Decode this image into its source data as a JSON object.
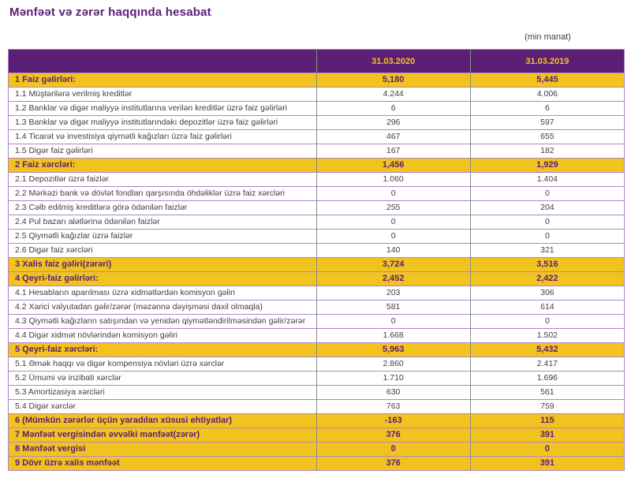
{
  "title": "Mənfəət və zərər haqqında hesabat",
  "unit_note": "(min manat)",
  "table": {
    "columns": [
      "31.03.2020",
      "31.03.2019"
    ],
    "rows": [
      {
        "label": "1 Faiz gəlirləri:",
        "values": [
          "5,180",
          "5,445"
        ],
        "style": "total"
      },
      {
        "label": "1.1 Müştərilərə verilmiş kreditlər",
        "values": [
          "4.244",
          "4.006"
        ],
        "style": "detail"
      },
      {
        "label": "1.2 Banklar və digər maliyyə institutlarına verilən kreditlər üzrə faiz gəlirləri",
        "values": [
          "6",
          "6"
        ],
        "style": "detail"
      },
      {
        "label": "1.3 Banklar və digər maliyyə institutlarındakı depozitlər üzrə faiz gəlirləri",
        "values": [
          "296",
          "597"
        ],
        "style": "detail"
      },
      {
        "label": "1.4 Ticarət və investisiya qiymətli kağızları üzrə faiz gəlirləri",
        "values": [
          "467",
          "655"
        ],
        "style": "detail"
      },
      {
        "label": "1.5 Digər faiz gəlirləri",
        "values": [
          "167",
          "182"
        ],
        "style": "detail"
      },
      {
        "label": "2 Faiz xərcləri:",
        "values": [
          "1,456",
          "1,929"
        ],
        "style": "total"
      },
      {
        "label": "2.1 Depozitlər üzrə faizlər",
        "values": [
          "1.060",
          "1.404"
        ],
        "style": "detail"
      },
      {
        "label": "2.2 Mərkəzi bank və dövlət fondları qarşısında öhdəliklər üzrə faiz xərcləri",
        "values": [
          "0",
          "0"
        ],
        "style": "detail"
      },
      {
        "label": "2.3 Cəlb edilmiş kreditlərə görə ödənilən faizlər",
        "values": [
          "255",
          "204"
        ],
        "style": "detail"
      },
      {
        "label": "2.4 Pul bazarı alətlərinə ödənilən faizlər",
        "values": [
          "0",
          "0"
        ],
        "style": "detail"
      },
      {
        "label": "2.5 Qiymətli kağızlar üzrə faizlər",
        "values": [
          "0",
          "0"
        ],
        "style": "detail"
      },
      {
        "label": "2.6 Digər faiz xərcləri",
        "values": [
          "140",
          "321"
        ],
        "style": "detail"
      },
      {
        "label": "3 Xalis faiz gəliri(zərəri)",
        "values": [
          "3,724",
          "3,516"
        ],
        "style": "total"
      },
      {
        "label": "4 Qeyri-faiz gəlirləri:",
        "values": [
          "2,452",
          "2,422"
        ],
        "style": "total"
      },
      {
        "label": "4.1 Hesabların aparılması üzrə xidmətlərdən komisyon gəliri",
        "values": [
          "203",
          "306"
        ],
        "style": "detail"
      },
      {
        "label": "4.2 Xarici valyutadan gəlir/zərər (məzənnə dəyişməsi daxil olmaqla)",
        "values": [
          "581",
          "614"
        ],
        "style": "detail"
      },
      {
        "label": "4.3 Qiymətli kağızların satışından və yenidən qiymətləndirilməsindən gəlir/zərər",
        "values": [
          "0",
          "0"
        ],
        "style": "detail"
      },
      {
        "label": "4.4 Digər xidmət növlərindən komisyon gəliri",
        "values": [
          "1.668",
          "1.502"
        ],
        "style": "detail"
      },
      {
        "label": "5 Qeyri-faiz xərcləri:",
        "values": [
          "5,963",
          "5,432"
        ],
        "style": "total"
      },
      {
        "label": "5.1 Əmək haqqı və digər kompensiya növləri üzrə xərclər",
        "values": [
          "2.860",
          "2.417"
        ],
        "style": "detail"
      },
      {
        "label": "5.2 Ümumi və inzibati xərclər",
        "values": [
          "1.710",
          "1.696"
        ],
        "style": "detail"
      },
      {
        "label": "5.3 Amortizasiya xərcləri",
        "values": [
          "630",
          "561"
        ],
        "style": "detail"
      },
      {
        "label": "5.4 Digər xərclər",
        "values": [
          "763",
          "759"
        ],
        "style": "detail"
      },
      {
        "label": "6 (Mümkün zərərlər üçün yaradılan xüsusi ehtiyatlar)",
        "values": [
          "-163",
          "115"
        ],
        "style": "total"
      },
      {
        "label": "7 Mənfəət vergisindən əvvəlki mənfəət(zərər)",
        "values": [
          "376",
          "391"
        ],
        "style": "total"
      },
      {
        "label": "8 Mənfəət vergisi",
        "values": [
          "0",
          "0"
        ],
        "style": "total"
      },
      {
        "label": "9 Dövr üzrə xalis mənfəət",
        "values": [
          "376",
          "391"
        ],
        "style": "total"
      }
    ]
  },
  "colors": {
    "brand_purple": "#5b2076",
    "brand_yellow": "#f2c31f",
    "row_border": "#b286c4",
    "column_divider": "#8a8a8a",
    "body_text": "#414042"
  }
}
